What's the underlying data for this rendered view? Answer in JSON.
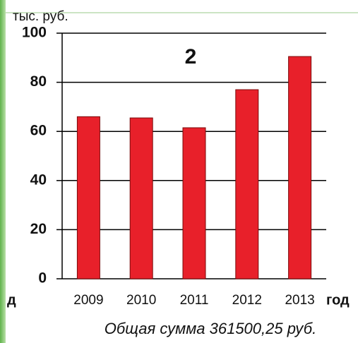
{
  "chart_data": {
    "type": "bar",
    "title": "2",
    "y_unit": "тыс. руб.",
    "x_label": "год",
    "left_fragment": "д",
    "footer": "Общая сумма 361500,25 руб.",
    "categories": [
      "2009",
      "2010",
      "2011",
      "2012",
      "2013"
    ],
    "values": [
      66,
      65.5,
      61.5,
      77,
      90.5
    ],
    "color": "#e8202a",
    "ylim": [
      0,
      100
    ],
    "yticks": [
      0,
      20,
      40,
      60,
      80,
      100
    ],
    "grid": true
  }
}
